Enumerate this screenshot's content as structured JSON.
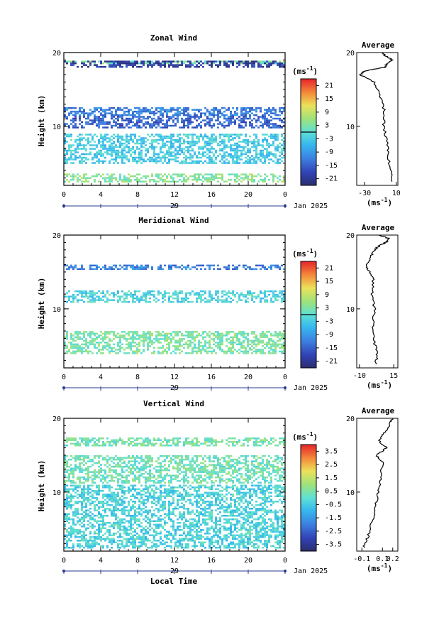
{
  "figure": {
    "date_label": "Jan 2025",
    "day_label": "29",
    "xlabel_bottom": "Local Time",
    "ylabel": "Height (km)",
    "unit_label": "(ms",
    "unit_sup": "-1",
    "avg_title": "Average"
  },
  "chart_data": [
    {
      "type": "heatmap",
      "title": "Zonal Wind",
      "ylabel": "Height (km)",
      "x_ticks": [
        "0",
        "4",
        "8",
        "12",
        "16",
        "20",
        "0"
      ],
      "y_ticks": [
        "10",
        "20"
      ],
      "xlim": [
        0,
        24
      ],
      "ylim": [
        2,
        20
      ],
      "colorbar": {
        "label": "(ms-1)",
        "ticks": [
          "21",
          "15",
          "9",
          "3",
          "-3",
          "-9",
          "-15",
          "-21"
        ],
        "range": [
          -24,
          24
        ]
      },
      "layers": [
        {
          "z": [
            18.5,
            18.9
          ],
          "value": 3
        },
        {
          "z": [
            18.0,
            18.9
          ],
          "value": -20
        },
        {
          "z": [
            11.4,
            12.6
          ],
          "value": -12
        },
        {
          "z": [
            9.9,
            11.4
          ],
          "value": -15
        },
        {
          "z": [
            5.0,
            9.0
          ],
          "value": -3
        },
        {
          "z": [
            2.4,
            3.6
          ],
          "value": 4
        }
      ],
      "average_profile": {
        "title": "Average",
        "xlabel": "(ms-1)",
        "x_ticks": [
          "-30",
          "10"
        ],
        "xlim": [
          -40,
          12
        ],
        "z": [
          2.5,
          4,
          6,
          8,
          10,
          12,
          14,
          16,
          17,
          17.5,
          18,
          18.5,
          19,
          19.5,
          20
        ],
        "value": [
          5,
          3,
          0,
          -2,
          -6,
          -5,
          -10,
          -18,
          -36,
          -30,
          -5,
          -2,
          5,
          -3,
          -8
        ]
      }
    },
    {
      "type": "heatmap",
      "title": "Meridional Wind",
      "ylabel": "Height (km)",
      "x_ticks": [
        "0",
        "4",
        "8",
        "12",
        "16",
        "20",
        "0"
      ],
      "y_ticks": [
        "10",
        "20"
      ],
      "xlim": [
        0,
        24
      ],
      "ylim": [
        2,
        20
      ],
      "colorbar": {
        "label": "(ms-1)",
        "ticks": [
          "21",
          "15",
          "9",
          "3",
          "-3",
          "-9",
          "-15",
          "-21"
        ],
        "range": [
          -24,
          24
        ]
      },
      "layers": [
        {
          "z": [
            15.4,
            16.0
          ],
          "value": -12
        },
        {
          "z": [
            11.0,
            12.5
          ],
          "value": -2
        },
        {
          "z": [
            4.0,
            7.0
          ],
          "value": 3
        }
      ],
      "average_profile": {
        "title": "Average",
        "xlabel": "(ms-1)",
        "x_ticks": [
          "-10",
          "15"
        ],
        "xlim": [
          -12,
          18
        ],
        "z": [
          2.5,
          4,
          6,
          8,
          10,
          12,
          14,
          15,
          16,
          17,
          18,
          18.5,
          19,
          19.5,
          20
        ],
        "value": [
          2,
          3,
          0,
          0,
          1,
          -1,
          0,
          -3,
          -5,
          -2,
          1,
          4,
          9,
          12,
          4
        ]
      }
    },
    {
      "type": "heatmap",
      "title": "Vertical Wind",
      "ylabel": "Height (km)",
      "x_ticks": [
        "0",
        "4",
        "8",
        "12",
        "16",
        "20",
        "0"
      ],
      "y_ticks": [
        "10",
        "20"
      ],
      "xlim": [
        0,
        24
      ],
      "ylim": [
        2,
        20
      ],
      "colorbar": {
        "label": "(ms-1)",
        "ticks": [
          "3.5",
          "2.5",
          "1.5",
          "0.5",
          "-0.5",
          "-1.5",
          "-2.5",
          "-3.5"
        ],
        "range": [
          -4,
          4
        ]
      },
      "layers": [
        {
          "z": [
            16.2,
            17.4
          ],
          "value": 0.4
        },
        {
          "z": [
            11.3,
            15.0
          ],
          "value": 0.3
        },
        {
          "z": [
            2.4,
            11.0
          ],
          "value": -0.3
        }
      ],
      "average_profile": {
        "title": "Average",
        "xlabel": "(ms-1)",
        "x_ticks": [
          "-0.1",
          "0.1",
          "0.2"
        ],
        "xlim": [
          -0.15,
          0.25
        ],
        "z": [
          2.5,
          4,
          6,
          8,
          10,
          12,
          14,
          15,
          16,
          17,
          18,
          19,
          20
        ],
        "value": [
          -0.08,
          -0.04,
          0.0,
          0.03,
          0.06,
          0.08,
          0.1,
          0.04,
          0.14,
          0.06,
          0.12,
          0.16,
          0.2
        ]
      }
    }
  ]
}
